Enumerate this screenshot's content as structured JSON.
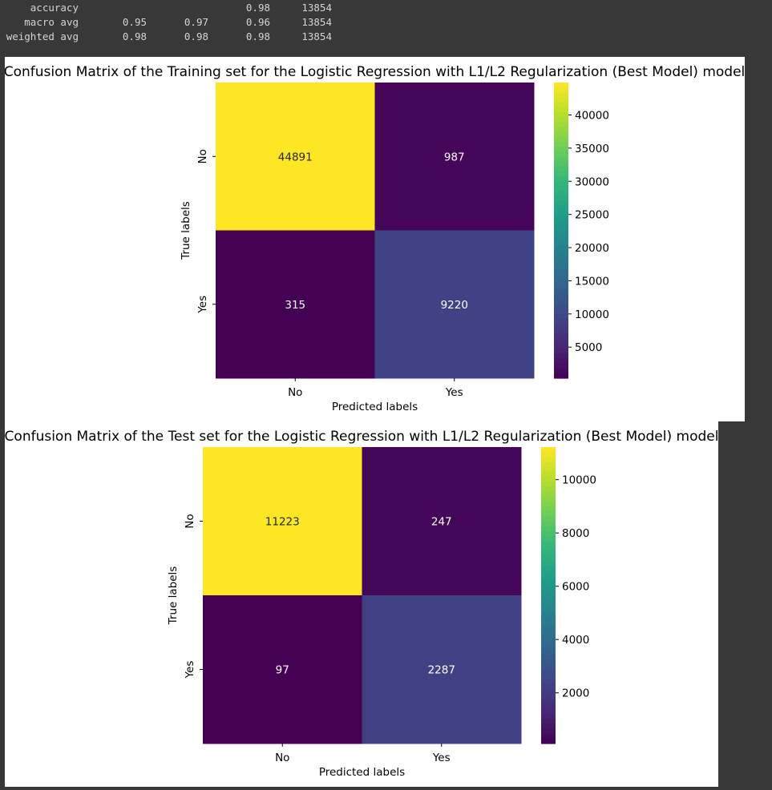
{
  "report": {
    "rows": [
      {
        "label": "accuracy",
        "precision": "",
        "recall": "",
        "f1": "0.98",
        "support": "13854"
      },
      {
        "label": "macro avg",
        "precision": "0.95",
        "recall": "0.97",
        "f1": "0.96",
        "support": "13854"
      },
      {
        "label": "weighted avg",
        "precision": "0.98",
        "recall": "0.98",
        "f1": "0.98",
        "support": "13854"
      }
    ]
  },
  "chart_data": [
    {
      "type": "heatmap",
      "title": "Confusion Matrix of the Training set for the Logistic Regression with L1/L2 Regularization (Best Model) model",
      "xlabel": "Predicted labels",
      "ylabel": "True labels",
      "x_categories": [
        "No",
        "Yes"
      ],
      "y_categories": [
        "No",
        "Yes"
      ],
      "values": [
        [
          44891,
          987
        ],
        [
          315,
          9220
        ]
      ],
      "colormap": "viridis",
      "colorbar": {
        "min": 315,
        "max": 44891,
        "ticks": [
          5000,
          10000,
          15000,
          20000,
          25000,
          30000,
          35000,
          40000
        ]
      }
    },
    {
      "type": "heatmap",
      "title": "Confusion Matrix of the Test set for the Logistic Regression with L1/L2 Regularization (Best Model) model",
      "xlabel": "Predicted labels",
      "ylabel": "True labels",
      "x_categories": [
        "No",
        "Yes"
      ],
      "y_categories": [
        "No",
        "Yes"
      ],
      "values": [
        [
          11223,
          247
        ],
        [
          97,
          2287
        ]
      ],
      "colormap": "viridis",
      "colorbar": {
        "min": 97,
        "max": 11223,
        "ticks": [
          2000,
          4000,
          6000,
          8000,
          10000
        ]
      }
    }
  ]
}
